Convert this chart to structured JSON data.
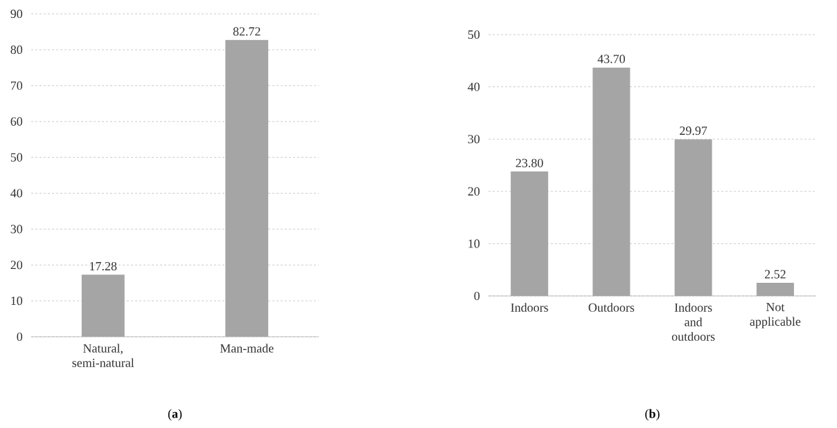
{
  "chart_data": [
    {
      "type": "bar",
      "categories": [
        "Natural, semi-natural",
        "Man-made"
      ],
      "values": [
        17.28,
        82.72
      ],
      "value_labels": [
        "17.28",
        "82.72"
      ],
      "color": "#a5a5a5",
      "ylim": [
        0,
        90
      ],
      "yticks": [
        0,
        10,
        20,
        30,
        40,
        50,
        60,
        70,
        80,
        90
      ],
      "grid": "y",
      "annotations": [
        "(**a**)"
      ]
    },
    {
      "type": "bar",
      "categories": [
        "Indoors",
        "Outdoors",
        "Indoors and outdoors",
        "Not applicable"
      ],
      "values": [
        23.8,
        43.7,
        29.97,
        2.52
      ],
      "value_labels": [
        "23.80",
        "43.70",
        "29.97",
        "2.52"
      ],
      "color": "#a5a5a5",
      "ylim": [
        0,
        50
      ],
      "yticks": [
        0,
        10,
        20,
        30,
        40,
        50
      ],
      "grid": "y",
      "annotations": [
        "(**b**)"
      ]
    }
  ]
}
